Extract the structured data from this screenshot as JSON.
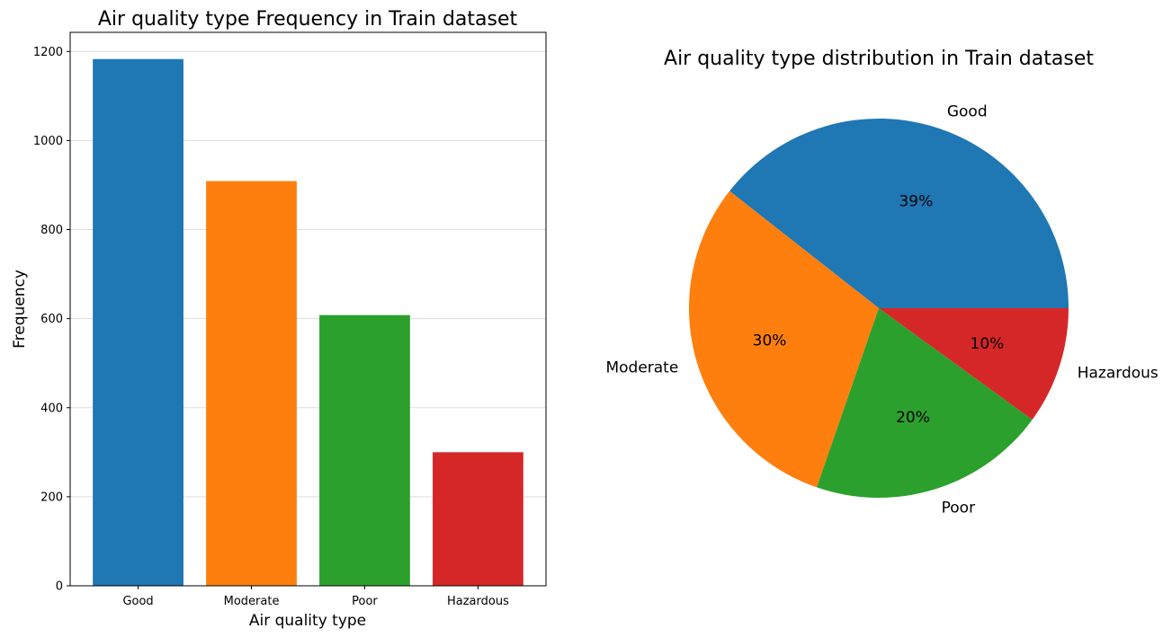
{
  "chart_data": [
    {
      "type": "bar",
      "title": "Air quality type Frequency in Train dataset",
      "xlabel": "Air quality type",
      "ylabel": "Frequency",
      "categories": [
        "Good",
        "Moderate",
        "Poor",
        "Hazardous"
      ],
      "values": [
        1183,
        909,
        608,
        300
      ],
      "colors": [
        "#1f77b4",
        "#ff7f0e",
        "#2ca02c",
        "#d62728"
      ],
      "ylim": [
        0,
        1243
      ],
      "yticks": [
        0,
        200,
        400,
        600,
        800,
        1000,
        1200
      ],
      "grid": "horizontal"
    },
    {
      "type": "pie",
      "title": "Air quality type distribution in Train dataset",
      "labels": [
        "Good",
        "Moderate",
        "Poor",
        "Hazardous"
      ],
      "values": [
        39.4,
        30.3,
        20.3,
        10.0
      ],
      "pct_labels": [
        "39%",
        "30%",
        "20%",
        "10%"
      ],
      "colors": [
        "#1f77b4",
        "#ff7f0e",
        "#2ca02c",
        "#d62728"
      ],
      "startangle": 0
    }
  ]
}
